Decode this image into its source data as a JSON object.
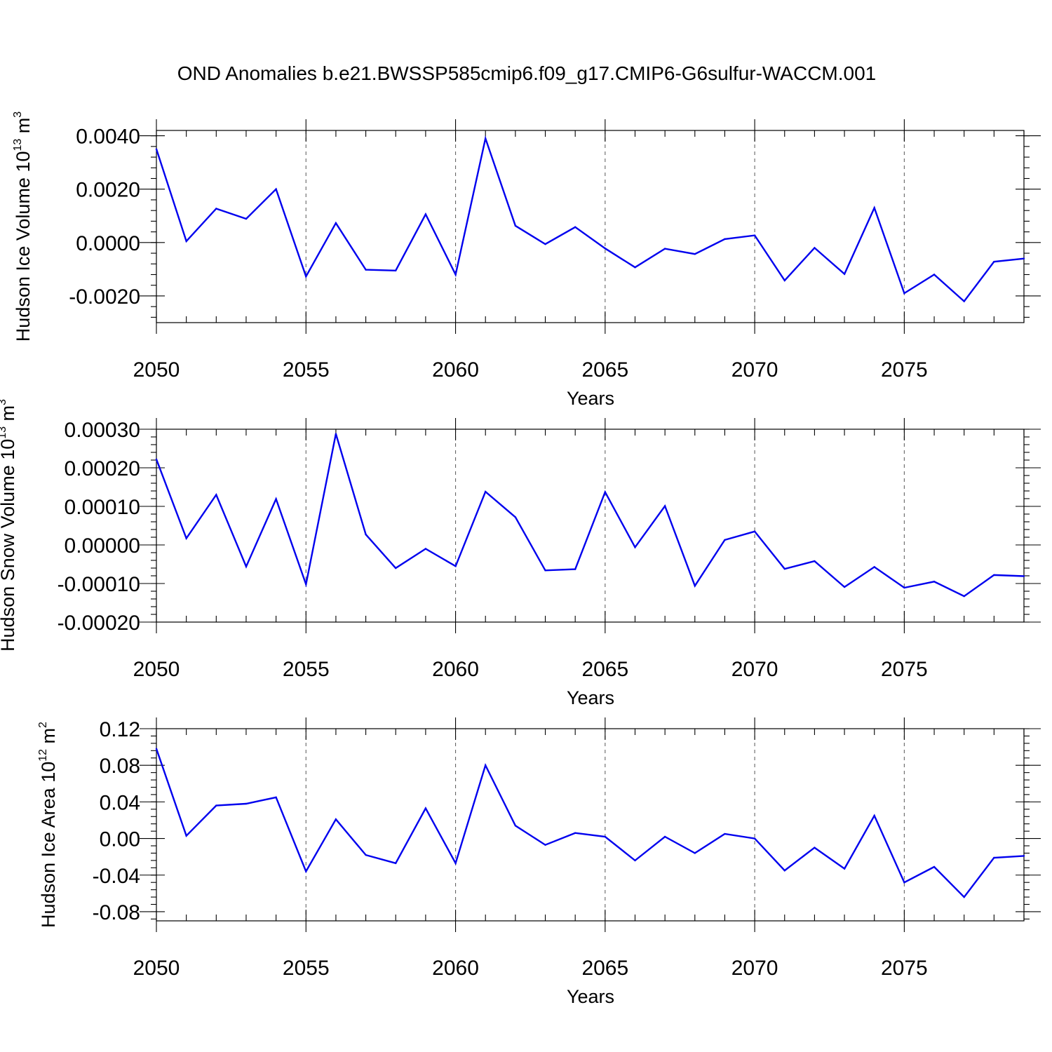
{
  "figure": {
    "title": "OND Anomalies b.e21.BWSSP585cmip6.f09_g17.CMIP6-G6sulfur-WACCM.001",
    "line_color": "#0000ee"
  },
  "chart_data": [
    {
      "type": "line",
      "xlabel": "Years",
      "ylabel": "Hudson Ice Volume 10",
      "ylabel_exp": "13",
      "ylabel_unit": " m",
      "ylabel_unit_exp": "3",
      "xlim": [
        2050,
        2079
      ],
      "ylim": [
        -0.003,
        0.0042
      ],
      "x_ticks": [
        2050,
        2055,
        2060,
        2065,
        2070,
        2075
      ],
      "x_tick_labels": [
        "2050",
        "2055",
        "2060",
        "2065",
        "2070",
        "2075"
      ],
      "y_ticks": [
        0.004,
        0.002,
        0.0,
        -0.002
      ],
      "y_tick_labels": [
        "0.0040",
        "0.0020",
        "0.0000",
        "-0.0020"
      ],
      "y_minor_step": 0.0004,
      "grid": "vertical dashed at major x ticks",
      "x": [
        2050,
        2051,
        2052,
        2053,
        2054,
        2055,
        2056,
        2057,
        2058,
        2059,
        2060,
        2061,
        2062,
        2063,
        2064,
        2065,
        2066,
        2067,
        2068,
        2069,
        2070,
        2071,
        2072,
        2073,
        2074,
        2075,
        2076,
        2077,
        2078,
        2079
      ],
      "values": [
        0.0035,
        5e-05,
        0.00127,
        0.00089,
        0.002,
        -0.00127,
        0.00073,
        -0.00102,
        -0.00105,
        0.00106,
        -0.0012,
        0.0039,
        0.00063,
        -6e-05,
        0.00058,
        -0.00022,
        -0.00093,
        -0.00023,
        -0.00043,
        0.00013,
        0.00027,
        -0.00142,
        -0.0002,
        -0.00118,
        0.0013,
        -0.0019,
        -0.0012,
        -0.0022,
        -0.00072,
        -0.0006
      ]
    },
    {
      "type": "line",
      "xlabel": "Years",
      "ylabel": "Hudson Snow Volume 10",
      "ylabel_exp": "13",
      "ylabel_unit": " m",
      "ylabel_unit_exp": "3",
      "xlim": [
        2050,
        2079
      ],
      "ylim": [
        -0.0002,
        0.0003
      ],
      "x_ticks": [
        2050,
        2055,
        2060,
        2065,
        2070,
        2075
      ],
      "x_tick_labels": [
        "2050",
        "2055",
        "2060",
        "2065",
        "2070",
        "2075"
      ],
      "y_ticks": [
        0.0003,
        0.0002,
        0.0001,
        0.0,
        -0.0001,
        -0.0002
      ],
      "y_tick_labels": [
        "0.00030",
        "0.00020",
        "0.00010",
        "0.00000",
        "-0.00010",
        "-0.00020"
      ],
      "y_minor_step": 2e-05,
      "grid": "vertical dashed at major x ticks",
      "x": [
        2050,
        2051,
        2052,
        2053,
        2054,
        2055,
        2056,
        2057,
        2058,
        2059,
        2060,
        2061,
        2062,
        2063,
        2064,
        2065,
        2066,
        2067,
        2068,
        2069,
        2070,
        2071,
        2072,
        2073,
        2074,
        2075,
        2076,
        2077,
        2078,
        2079
      ],
      "values": [
        0.000222,
        1.7e-05,
        0.00013,
        -5.6e-05,
        0.000119,
        -0.000102,
        0.000288,
        2.7e-05,
        -6e-05,
        -1e-05,
        -5.5e-05,
        0.000138,
        7.2e-05,
        -6.6e-05,
        -6.3e-05,
        0.000137,
        -6e-06,
        0.000101,
        -0.000106,
        1.3e-05,
        3.5e-05,
        -6.2e-05,
        -4.2e-05,
        -0.000109,
        -5.7e-05,
        -0.000111,
        -9.5e-05,
        -0.000133,
        -7.8e-05,
        -8.1e-05
      ]
    },
    {
      "type": "line",
      "xlabel": "Years",
      "ylabel": "Hudson Ice Area 10",
      "ylabel_exp": "12",
      "ylabel_unit": " m",
      "ylabel_unit_exp": "2",
      "xlim": [
        2050,
        2079
      ],
      "ylim": [
        -0.09,
        0.12
      ],
      "x_ticks": [
        2050,
        2055,
        2060,
        2065,
        2070,
        2075
      ],
      "x_tick_labels": [
        "2050",
        "2055",
        "2060",
        "2065",
        "2070",
        "2075"
      ],
      "y_ticks": [
        0.12,
        0.08,
        0.04,
        0.0,
        -0.04,
        -0.08
      ],
      "y_tick_labels": [
        "0.12",
        "0.08",
        "0.04",
        "0.00",
        "-0.04",
        "-0.08"
      ],
      "y_minor_step": 0.008,
      "grid": "vertical dashed at major x ticks",
      "x": [
        2050,
        2051,
        2052,
        2053,
        2054,
        2055,
        2056,
        2057,
        2058,
        2059,
        2060,
        2061,
        2062,
        2063,
        2064,
        2065,
        2066,
        2067,
        2068,
        2069,
        2070,
        2071,
        2072,
        2073,
        2074,
        2075,
        2076,
        2077,
        2078,
        2079
      ],
      "values": [
        0.098,
        0.003,
        0.036,
        0.038,
        0.045,
        -0.036,
        0.021,
        -0.018,
        -0.027,
        0.033,
        -0.027,
        0.08,
        0.014,
        -0.007,
        0.006,
        0.002,
        -0.024,
        0.002,
        -0.016,
        0.005,
        0.0,
        -0.035,
        -0.01,
        -0.033,
        0.025,
        -0.048,
        -0.031,
        -0.064,
        -0.021,
        -0.019
      ]
    }
  ]
}
